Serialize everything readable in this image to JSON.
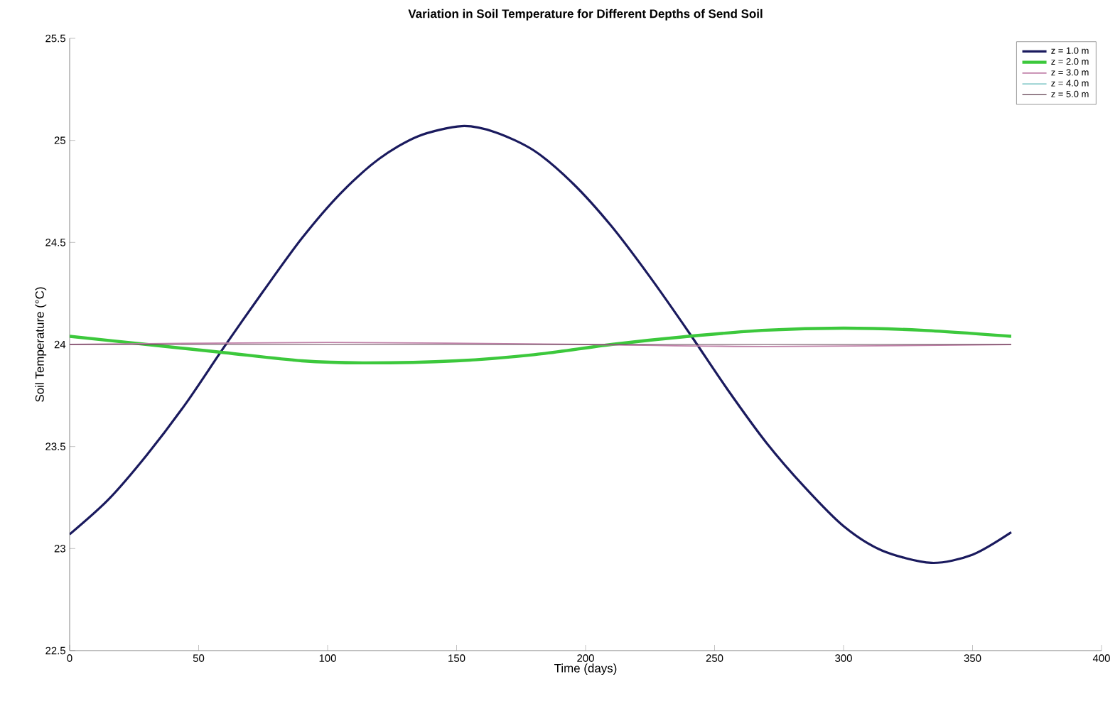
{
  "chart_data": {
    "type": "line",
    "title": "Variation in Soil Temperature for Different Depths of Send Soil",
    "xlabel": "Time (days)",
    "ylabel": "Soil Temperature (°C)",
    "xlim": [
      0,
      400
    ],
    "ylim": [
      22.5,
      25.5
    ],
    "xticks": [
      0,
      50,
      100,
      150,
      200,
      250,
      300,
      350,
      400
    ],
    "yticks": [
      22.5,
      23,
      23.5,
      24,
      24.5,
      25,
      25.5
    ],
    "grid": false,
    "legend": "top right",
    "marker": "none",
    "line_style": "solid",
    "series": [
      {
        "name": "z = 1.0 m",
        "color": "#1a1a5e",
        "x": [
          0,
          15,
          30,
          45,
          60,
          75,
          90,
          105,
          120,
          135,
          152,
          165,
          180,
          195,
          210,
          225,
          240,
          255,
          270,
          285,
          300,
          315,
          334,
          350,
          365
        ],
        "values": [
          23.07,
          23.24,
          23.46,
          23.71,
          23.99,
          24.26,
          24.52,
          24.74,
          24.91,
          25.02,
          25.07,
          25.04,
          24.95,
          24.79,
          24.58,
          24.33,
          24.06,
          23.78,
          23.52,
          23.3,
          23.11,
          22.99,
          22.93,
          22.97,
          23.08
        ]
      },
      {
        "name": "z = 2.0 m",
        "color": "#3cc83c",
        "x": [
          0,
          30,
          60,
          90,
          115,
          150,
          180,
          210,
          240,
          270,
          300,
          330,
          365
        ],
        "values": [
          24.04,
          24.0,
          23.96,
          23.92,
          23.91,
          23.92,
          23.95,
          24.0,
          24.04,
          24.07,
          24.08,
          24.07,
          24.04
        ]
      },
      {
        "name": "z = 3.0 m",
        "color": "#c080a8",
        "x": [
          0,
          100,
          200,
          270,
          365
        ],
        "values": [
          24.0,
          24.01,
          24.0,
          23.99,
          24.0
        ]
      },
      {
        "name": "z = 4.0 m",
        "color": "#5fb8b8",
        "values": [
          null,
          null
        ]
      },
      {
        "name": "z = 5.0 m",
        "color": "#604050",
        "x": [
          0,
          365
        ],
        "values": [
          24.0,
          24.0
        ]
      }
    ]
  }
}
